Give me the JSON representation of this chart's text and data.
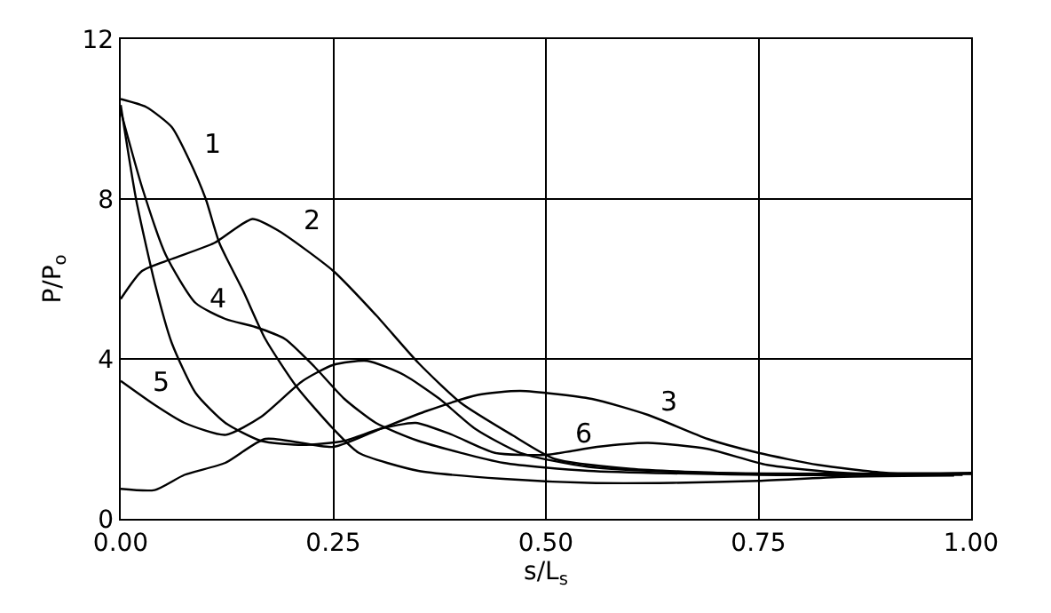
{
  "chart_data": {
    "type": "line",
    "xlabel": "s/L$_{s}$",
    "ylabel": "P/P$_{o}$",
    "xlim": [
      0,
      1
    ],
    "ylim": [
      0,
      12
    ],
    "xticks": [
      {
        "value": 0,
        "label": "0.00"
      },
      {
        "value": 0.25,
        "label": "0.25"
      },
      {
        "value": 0.5,
        "label": "0.50"
      },
      {
        "value": 0.75,
        "label": "0.75"
      },
      {
        "value": 1,
        "label": "1.00"
      }
    ],
    "yticks": [
      0,
      4,
      8,
      12
    ],
    "grid": true,
    "legend": false,
    "marker": "none",
    "line_style": "solid",
    "series": [
      {
        "name": "1",
        "color": "#000000",
        "x": [
          0,
          0.03,
          0.06,
          0.08,
          0.1,
          0.116,
          0.144,
          0.17,
          0.207,
          0.25,
          0.28,
          0.35,
          0.45,
          0.55,
          0.65,
          0.75,
          0.85,
          0.98
        ],
        "values": [
          10.5,
          10.3,
          9.8,
          9.0,
          8.0,
          6.9,
          5.7,
          4.5,
          3.3,
          2.25,
          1.65,
          1.2,
          1.0,
          0.9,
          0.9,
          0.95,
          1.05,
          1.08
        ]
      },
      {
        "name": "2",
        "color": "#000000",
        "x": [
          0,
          0.025,
          0.06,
          0.11,
          0.155,
          0.186,
          0.25,
          0.3,
          0.35,
          0.4,
          0.46,
          0.51,
          0.6,
          0.75,
          0.9,
          1
        ],
        "values": [
          5.5,
          6.2,
          6.5,
          6.9,
          7.5,
          7.2,
          6.2,
          5.1,
          3.9,
          2.9,
          2.1,
          1.5,
          1.25,
          1.12,
          1.12,
          1.12
        ]
      },
      {
        "name": "3",
        "color": "#000000",
        "x": [
          0,
          0.04,
          0.075,
          0.123,
          0.17,
          0.25,
          0.305,
          0.36,
          0.42,
          0.47,
          0.554,
          0.62,
          0.69,
          0.75,
          0.82,
          0.9,
          1
        ],
        "values": [
          0.75,
          0.72,
          1.1,
          1.4,
          2.0,
          1.8,
          2.25,
          2.7,
          3.1,
          3.2,
          3.0,
          2.6,
          2.0,
          1.65,
          1.35,
          1.15,
          1.15
        ]
      },
      {
        "name": "4",
        "color": "#000000",
        "x": [
          0,
          0.025,
          0.053,
          0.088,
          0.123,
          0.158,
          0.193,
          0.228,
          0.263,
          0.3,
          0.35,
          0.45,
          0.55,
          0.75,
          0.99
        ],
        "values": [
          10.2,
          8.3,
          6.6,
          5.4,
          5.0,
          4.8,
          4.5,
          3.8,
          3.0,
          2.4,
          1.95,
          1.4,
          1.2,
          1.1,
          1.1
        ]
      },
      {
        "name": "5",
        "color": "#000000",
        "x": [
          0,
          0.04,
          0.075,
          0.123,
          0.165,
          0.214,
          0.25,
          0.29,
          0.333,
          0.375,
          0.417,
          0.47,
          0.55,
          0.7,
          1
        ],
        "values": [
          3.45,
          2.85,
          2.4,
          2.1,
          2.55,
          3.45,
          3.85,
          3.95,
          3.6,
          3.0,
          2.25,
          1.65,
          1.3,
          1.15,
          1.13
        ]
      },
      {
        "name": "6",
        "color": "#000000",
        "x": [
          0,
          0.018,
          0.04,
          0.06,
          0.088,
          0.123,
          0.165,
          0.214,
          0.263,
          0.305,
          0.347,
          0.39,
          0.44,
          0.5,
          0.56,
          0.62,
          0.69,
          0.76,
          0.85,
          0.97
        ],
        "values": [
          10.35,
          8.0,
          5.9,
          4.4,
          3.15,
          2.4,
          1.95,
          1.85,
          1.95,
          2.25,
          2.4,
          2.1,
          1.65,
          1.6,
          1.8,
          1.9,
          1.75,
          1.35,
          1.15,
          1.11
        ]
      }
    ]
  }
}
